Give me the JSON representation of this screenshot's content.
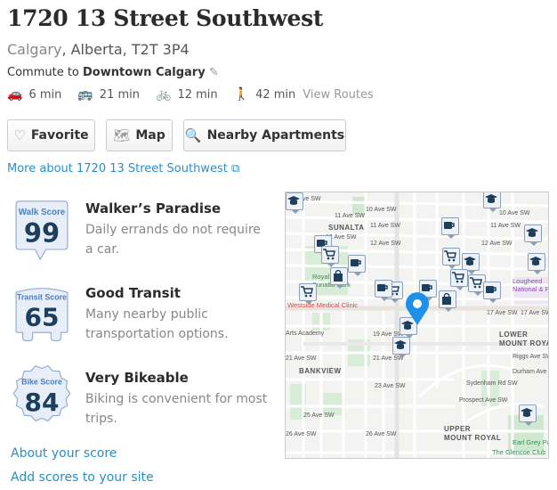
{
  "header": {
    "title": "1720 13 Street Southwest",
    "city": "Calgary",
    "region": ", Alberta, T2T 3P4"
  },
  "commute": {
    "prefix": "Commute to ",
    "destination": "Downtown Calgary",
    "edit_icon": "pencil-icon"
  },
  "modes": [
    {
      "icon": "car-icon",
      "time": "6 min"
    },
    {
      "icon": "bus-icon",
      "time": "21 min"
    },
    {
      "icon": "bike-icon",
      "time": "12 min"
    },
    {
      "icon": "walk-icon",
      "time": "42 min"
    }
  ],
  "view_routes": "View Routes",
  "buttons": {
    "favorite": "Favorite",
    "map": "Map",
    "nearby": "Nearby Apartments"
  },
  "more_link": "More about 1720 13 Street Southwest",
  "scores": [
    {
      "label": "Walk Score",
      "value": "99",
      "title": "Walker’s Paradise",
      "desc": "Daily errands do not require a car."
    },
    {
      "label": "Transit Score",
      "value": "65",
      "title": "Good Transit",
      "desc": "Many nearby public transportation options."
    },
    {
      "label": "Bike Score",
      "value": "84",
      "title": "Very Bikeable",
      "desc": "Biking is convenient for most trips."
    }
  ],
  "links": {
    "about": "About your score",
    "add": "Add scores to your site"
  },
  "colors": {
    "link": "#2a8fc7",
    "badge_text": "#1d3f5e",
    "badge_label": "#4a7fc1",
    "badge_fill": "#e8eef8",
    "pin": "#1e90e8"
  },
  "map": {
    "labels": {
      "a10": "10 Ave SW",
      "a10b": "10 Ave SW",
      "a10c": "10 Ave SW",
      "a11": "11 Ave SW",
      "a11b": "11 Ave SW",
      "a11c": "11 Ave SW",
      "a12": "12 Ave SW",
      "a12b": "12 Ave SW",
      "a12c": "12 Ave SW",
      "a17": "17 Ave SW",
      "a17b": "17 Ave SW",
      "a19": "19 Ave SW",
      "a21": "21 Ave SW",
      "a21b": "21 Ave SW",
      "a23": "23 Ave SW",
      "a25": "25 Ave SW",
      "a26": "26 Ave SW",
      "a26b": "26 Ave SW",
      "sunalta": "SUNALTA",
      "bankview": "BANKVIEW",
      "lmr": "LOWER\nMOUNT ROYAL",
      "umr": "UPPER\nMOUNT ROYAL",
      "park": "Royal\nSunalta Park",
      "clinic": "Westside Medical Clinic",
      "arts": "Arts Academy",
      "lougheed": "Lougheed\nNational & Po",
      "earl": "Earl Grey Pa",
      "glencoe": "The Glencoe Club",
      "riggs": "Riggs Ave SW",
      "durham": "Durham Ave SW",
      "sydenham": "Sydenham Rd SW",
      "prospect": "Prospect Ave SW"
    },
    "markers": [
      "school",
      "coffee",
      "school",
      "coffee",
      "school",
      "cart",
      "coffee",
      "school",
      "cart",
      "cart",
      "coffee",
      "school",
      "cart",
      "bag",
      "cart",
      "cart",
      "coffee",
      "coffee",
      "coffee",
      "cart",
      "bag",
      "school",
      "school",
      "school"
    ]
  }
}
